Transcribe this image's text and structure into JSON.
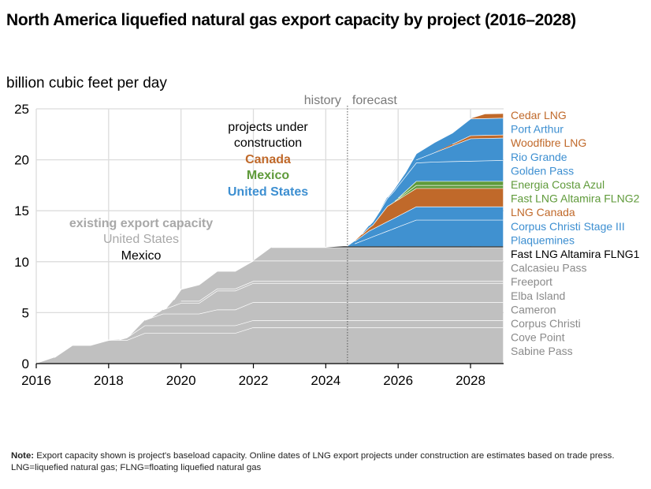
{
  "chart_data": {
    "type": "area",
    "stacked": true,
    "title": "North America liquefied natural gas export capacity by project (2016–2028)",
    "ylabel": "billion cubic feet per day",
    "xlabel": "",
    "xlim": [
      2016,
      2028.9
    ],
    "ylim": [
      0,
      25
    ],
    "xticks": [
      "2016",
      "2018",
      "2020",
      "2022",
      "2024",
      "2026",
      "2028"
    ],
    "xtick_values": [
      2016,
      2018,
      2020,
      2022,
      2024,
      2026,
      2028
    ],
    "yticks": [
      "0",
      "5",
      "10",
      "15",
      "20",
      "25"
    ],
    "ytick_values": [
      0,
      5,
      10,
      15,
      20,
      25
    ],
    "grid": true,
    "divider": {
      "x": 2024.6,
      "left_label": "history",
      "right_label": "forecast"
    },
    "annotations": {
      "under_construction": {
        "line1": "projects under",
        "line2": "construction",
        "canada": "Canada",
        "mexico": "Mexico",
        "us": "United States"
      },
      "existing": {
        "line1": "existing export capacity",
        "line2": "United States",
        "line3": "Mexico"
      }
    },
    "colors": {
      "us_existing": "#c0c0c0",
      "us_new": "#4091d0",
      "canada": "#c0692a",
      "mexico_new": "#5f9a3a",
      "mexico_existing": "#222222",
      "separator": "#ffffff"
    },
    "series": [
      {
        "name": "Sabine Pass",
        "country": "us_existing",
        "label_color": "#8a8a8a",
        "points": [
          [
            2016,
            0
          ],
          [
            2016.5,
            0.6
          ],
          [
            2017,
            1.8
          ],
          [
            2017.5,
            1.8
          ],
          [
            2018,
            2.3
          ],
          [
            2018.5,
            2.3
          ],
          [
            2019,
            3.0
          ],
          [
            2021.5,
            3.0
          ],
          [
            2022,
            3.56
          ],
          [
            2028.9,
            3.56
          ]
        ]
      },
      {
        "name": "Cove Point",
        "country": "us_existing",
        "label_color": "#8a8a8a",
        "points": [
          [
            2016,
            0
          ],
          [
            2018,
            0
          ],
          [
            2018.3,
            0.05
          ],
          [
            2019,
            0.75
          ],
          [
            2021.5,
            0.75
          ],
          [
            2022,
            0.7
          ],
          [
            2028.9,
            0.7
          ]
        ]
      },
      {
        "name": "Corpus Christi",
        "country": "us_existing",
        "label_color": "#8a8a8a",
        "points": [
          [
            2016,
            0
          ],
          [
            2018.6,
            0
          ],
          [
            2019.5,
            1.15
          ],
          [
            2020.5,
            1.15
          ],
          [
            2021,
            1.55
          ],
          [
            2021.5,
            1.55
          ],
          [
            2022,
            1.78
          ],
          [
            2028.9,
            1.78
          ]
        ]
      },
      {
        "name": "Cameron",
        "country": "us_existing",
        "label_color": "#8a8a8a",
        "points": [
          [
            2016,
            0
          ],
          [
            2019.2,
            0
          ],
          [
            2020,
            1.05
          ],
          [
            2020.5,
            1.05
          ],
          [
            2021,
            1.86
          ],
          [
            2021.5,
            1.86
          ],
          [
            2022,
            1.86
          ],
          [
            2028.9,
            1.86
          ]
        ]
      },
      {
        "name": "Elba Island",
        "country": "us_existing",
        "label_color": "#8a8a8a",
        "points": [
          [
            2016,
            0
          ],
          [
            2019.8,
            0
          ],
          [
            2020,
            0.2
          ],
          [
            2028.9,
            0.2
          ]
        ]
      },
      {
        "name": "Freeport",
        "country": "us_existing",
        "label_color": "#8a8a8a",
        "points": [
          [
            2016,
            0
          ],
          [
            2019.6,
            0
          ],
          [
            2020,
            1.15
          ],
          [
            2020.5,
            1.6
          ],
          [
            2021,
            1.72
          ],
          [
            2021.5,
            1.72
          ],
          [
            2022,
            2.0
          ],
          [
            2028.9,
            2.0
          ]
        ]
      },
      {
        "name": "Calcasieu Pass",
        "country": "us_existing",
        "label_color": "#8a8a8a",
        "points": [
          [
            2016,
            0
          ],
          [
            2022,
            0
          ],
          [
            2022.5,
            1.31
          ],
          [
            2028.9,
            1.31
          ]
        ]
      },
      {
        "name": "Fast LNG Altamira FLNG1",
        "country": "mexico_existing",
        "label_color": "#000000",
        "points": [
          [
            2016,
            0
          ],
          [
            2024,
            0
          ],
          [
            2024.5,
            0.1
          ],
          [
            2028.9,
            0.1
          ]
        ]
      },
      {
        "name": "Plaquemines",
        "country": "us_new",
        "label_color": "#3d8fd1",
        "points": [
          [
            2016,
            0
          ],
          [
            2024.6,
            0
          ],
          [
            2026.5,
            2.6
          ],
          [
            2028.9,
            2.6
          ]
        ]
      },
      {
        "name": "Corpus Christi Stage III",
        "country": "us_new",
        "label_color": "#3d8fd1",
        "points": [
          [
            2016,
            0
          ],
          [
            2024.6,
            0
          ],
          [
            2025.2,
            0.7
          ],
          [
            2026.5,
            1.3
          ],
          [
            2028.9,
            1.3
          ]
        ]
      },
      {
        "name": "LNG Canada",
        "country": "canada",
        "label_color": "#c0692a",
        "points": [
          [
            2016,
            0
          ],
          [
            2024.8,
            0
          ],
          [
            2025.3,
            0.4
          ],
          [
            2025.7,
            1.5
          ],
          [
            2026.5,
            1.8
          ],
          [
            2028.9,
            1.8
          ]
        ]
      },
      {
        "name": "Fast LNG Altamira FLNG2",
        "country": "mexico_new",
        "label_color": "#5f9a3a",
        "points": [
          [
            2016,
            0
          ],
          [
            2025.8,
            0
          ],
          [
            2026,
            0.1
          ],
          [
            2026.5,
            0.3
          ],
          [
            2028.9,
            0.3
          ]
        ]
      },
      {
        "name": "Energia Costa Azul",
        "country": "mexico_new",
        "label_color": "#5f9a3a",
        "points": [
          [
            2016,
            0
          ],
          [
            2025.9,
            0
          ],
          [
            2026.5,
            0.4
          ],
          [
            2028.9,
            0.4
          ]
        ]
      },
      {
        "name": "Golden Pass",
        "country": "us_new",
        "label_color": "#3d8fd1",
        "points": [
          [
            2016,
            0
          ],
          [
            2025,
            0
          ],
          [
            2025.5,
            0.5
          ],
          [
            2026,
            1.2
          ],
          [
            2026.5,
            1.8
          ],
          [
            2027,
            1.9
          ],
          [
            2028.9,
            2.05
          ]
        ]
      },
      {
        "name": "Rio Grande",
        "country": "us_new",
        "label_color": "#3d8fd1",
        "points": [
          [
            2016,
            0
          ],
          [
            2026.2,
            0
          ],
          [
            2026.5,
            0.3
          ],
          [
            2027,
            0.9
          ],
          [
            2028,
            2.2
          ],
          [
            2028.9,
            2.2
          ]
        ]
      },
      {
        "name": "Woodfibre LNG",
        "country": "canada",
        "label_color": "#c0692a",
        "points": [
          [
            2016,
            0
          ],
          [
            2027,
            0
          ],
          [
            2027.5,
            0.15
          ],
          [
            2028,
            0.3
          ],
          [
            2028.9,
            0.3
          ]
        ]
      },
      {
        "name": "Port Arthur",
        "country": "us_new",
        "label_color": "#3d8fd1",
        "points": [
          [
            2016,
            0
          ],
          [
            2025.5,
            0
          ],
          [
            2026,
            0.25
          ],
          [
            2026.5,
            0.6
          ],
          [
            2027,
            1.0
          ],
          [
            2027.5,
            1.1
          ],
          [
            2028,
            1.65
          ],
          [
            2028.9,
            1.65
          ]
        ]
      },
      {
        "name": "Cedar LNG",
        "country": "canada",
        "label_color": "#c0692a",
        "points": [
          [
            2016,
            0
          ],
          [
            2028,
            0
          ],
          [
            2028.4,
            0.4
          ],
          [
            2028.9,
            0.4
          ]
        ]
      }
    ]
  },
  "note": {
    "bold": "Note:",
    "text": " Export capacity shown is project's baseload capacity. Online dates of LNG export projects under construction are estimates based on trade press. LNG=liquefied natural gas; FLNG=floating liquefied natural gas"
  }
}
